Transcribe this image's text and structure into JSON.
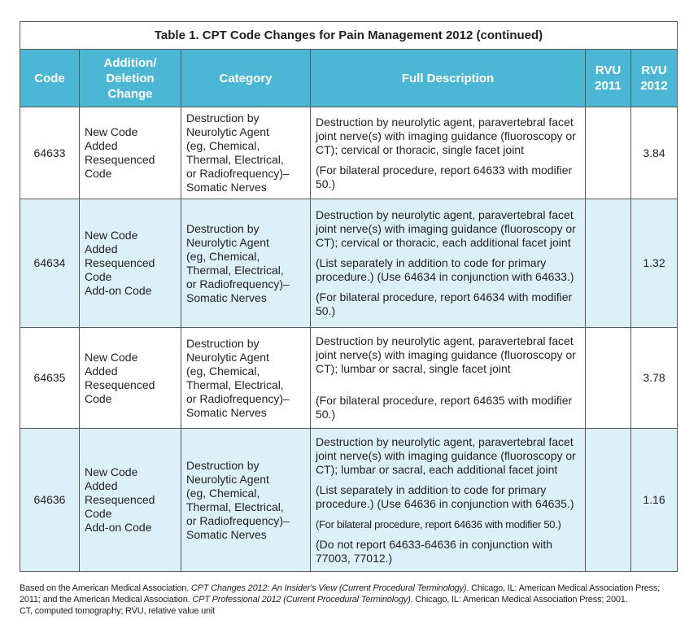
{
  "table": {
    "title": "Table 1. CPT Code Changes for Pain Management 2012 (continued)",
    "headers": {
      "code": "Code",
      "change": [
        "Addition/",
        "Deletion",
        "Change"
      ],
      "category": "Category",
      "description": "Full Description",
      "rvu2011": [
        "RVU",
        "2011"
      ],
      "rvu2012": [
        "RVU",
        "2012"
      ]
    },
    "rows": [
      {
        "code": "64633",
        "change": [
          "New Code",
          "Added",
          "Resequenced",
          "Code"
        ],
        "category": [
          "Destruction by",
          "Neurolytic Agent",
          "(eg, Chemical,",
          "Thermal, Electrical,",
          "or Radiofrequency)–",
          "Somatic Nerves"
        ],
        "description": [
          "Destruction by neurolytic agent, paravertebral facet joint nerve(s) with imaging guidance (fluoroscopy or CT); cervical or thoracic, single facet joint",
          "(For bilateral procedure, report 64633 with modifier 50.)"
        ],
        "rvu2011": "",
        "rvu2012": "3.84"
      },
      {
        "code": "64634",
        "change": [
          "New Code",
          "Added",
          "Resequenced",
          "Code",
          "Add-on Code"
        ],
        "category": [
          "Destruction by",
          "Neurolytic Agent",
          "(eg, Chemical,",
          "Thermal, Electrical,",
          "or Radiofrequency)–",
          "Somatic Nerves"
        ],
        "description": [
          "Destruction by neurolytic agent, paravertebral facet joint nerve(s) with imaging guidance (fluoroscopy or CT); cervical or thoracic, each additional facet joint",
          "(List separately in addition to code for primary procedure.) (Use 64634 in conjunction with 64633.)",
          "(For bilateral procedure, report 64634 with modifier 50.)"
        ],
        "rvu2011": "",
        "rvu2012": "1.32"
      },
      {
        "code": "64635",
        "change": [
          "New Code",
          "Added",
          "Resequenced",
          "Code"
        ],
        "category": [
          "Destruction by",
          "Neurolytic Agent",
          "(eg, Chemical,",
          "Thermal, Electrical,",
          "or Radiofrequency)–",
          "Somatic Nerves"
        ],
        "description": [
          "Destruction by neurolytic agent, paravertebral facet joint nerve(s) with imaging guidance (fluoroscopy or CT); lumbar or sacral, single facet joint",
          "(For bilateral procedure, report 64635 with modifier 50.)"
        ],
        "rvu2011": "",
        "rvu2012": "3.78"
      },
      {
        "code": "64636",
        "change": [
          "New Code",
          "Added",
          "Resequenced",
          "Code",
          "Add-on Code"
        ],
        "category": [
          "Destruction by",
          "Neurolytic Agent",
          "(eg, Chemical,",
          "Thermal, Electrical,",
          "or Radiofrequency)–",
          "Somatic Nerves"
        ],
        "description": [
          "Destruction by neurolytic agent, paravertebral facet joint nerve(s) with imaging guidance (fluoroscopy or CT); lumbar or sacral, each additional facet joint",
          "(List separately in addition to code for primary procedure.) (Use 64636 in conjunction with 64635.)",
          "(For bilateral procedure, report 64636 with modifier 50.)",
          "(Do not report 64633-64636 in conjunction with 77003, 77012.)"
        ],
        "rvu2011": "",
        "rvu2012": "1.16"
      }
    ]
  },
  "footnote": {
    "line1_prefix": "Based on the American Medical Association. ",
    "line1_title": "CPT Changes 2012: An Insider's View (Current Procedural Terminology)",
    "line1_suffix": ". Chicago, IL: American Medical Association Press; 2011; and the American Medical Association. ",
    "line2_title": "CPT Professional 2012 (Current Procedural Terminology)",
    "line2_suffix": ". Chicago, IL: American Medical Association Press; 2001.",
    "abbrev": "CT, computed tomography; RVU, relative value unit"
  }
}
